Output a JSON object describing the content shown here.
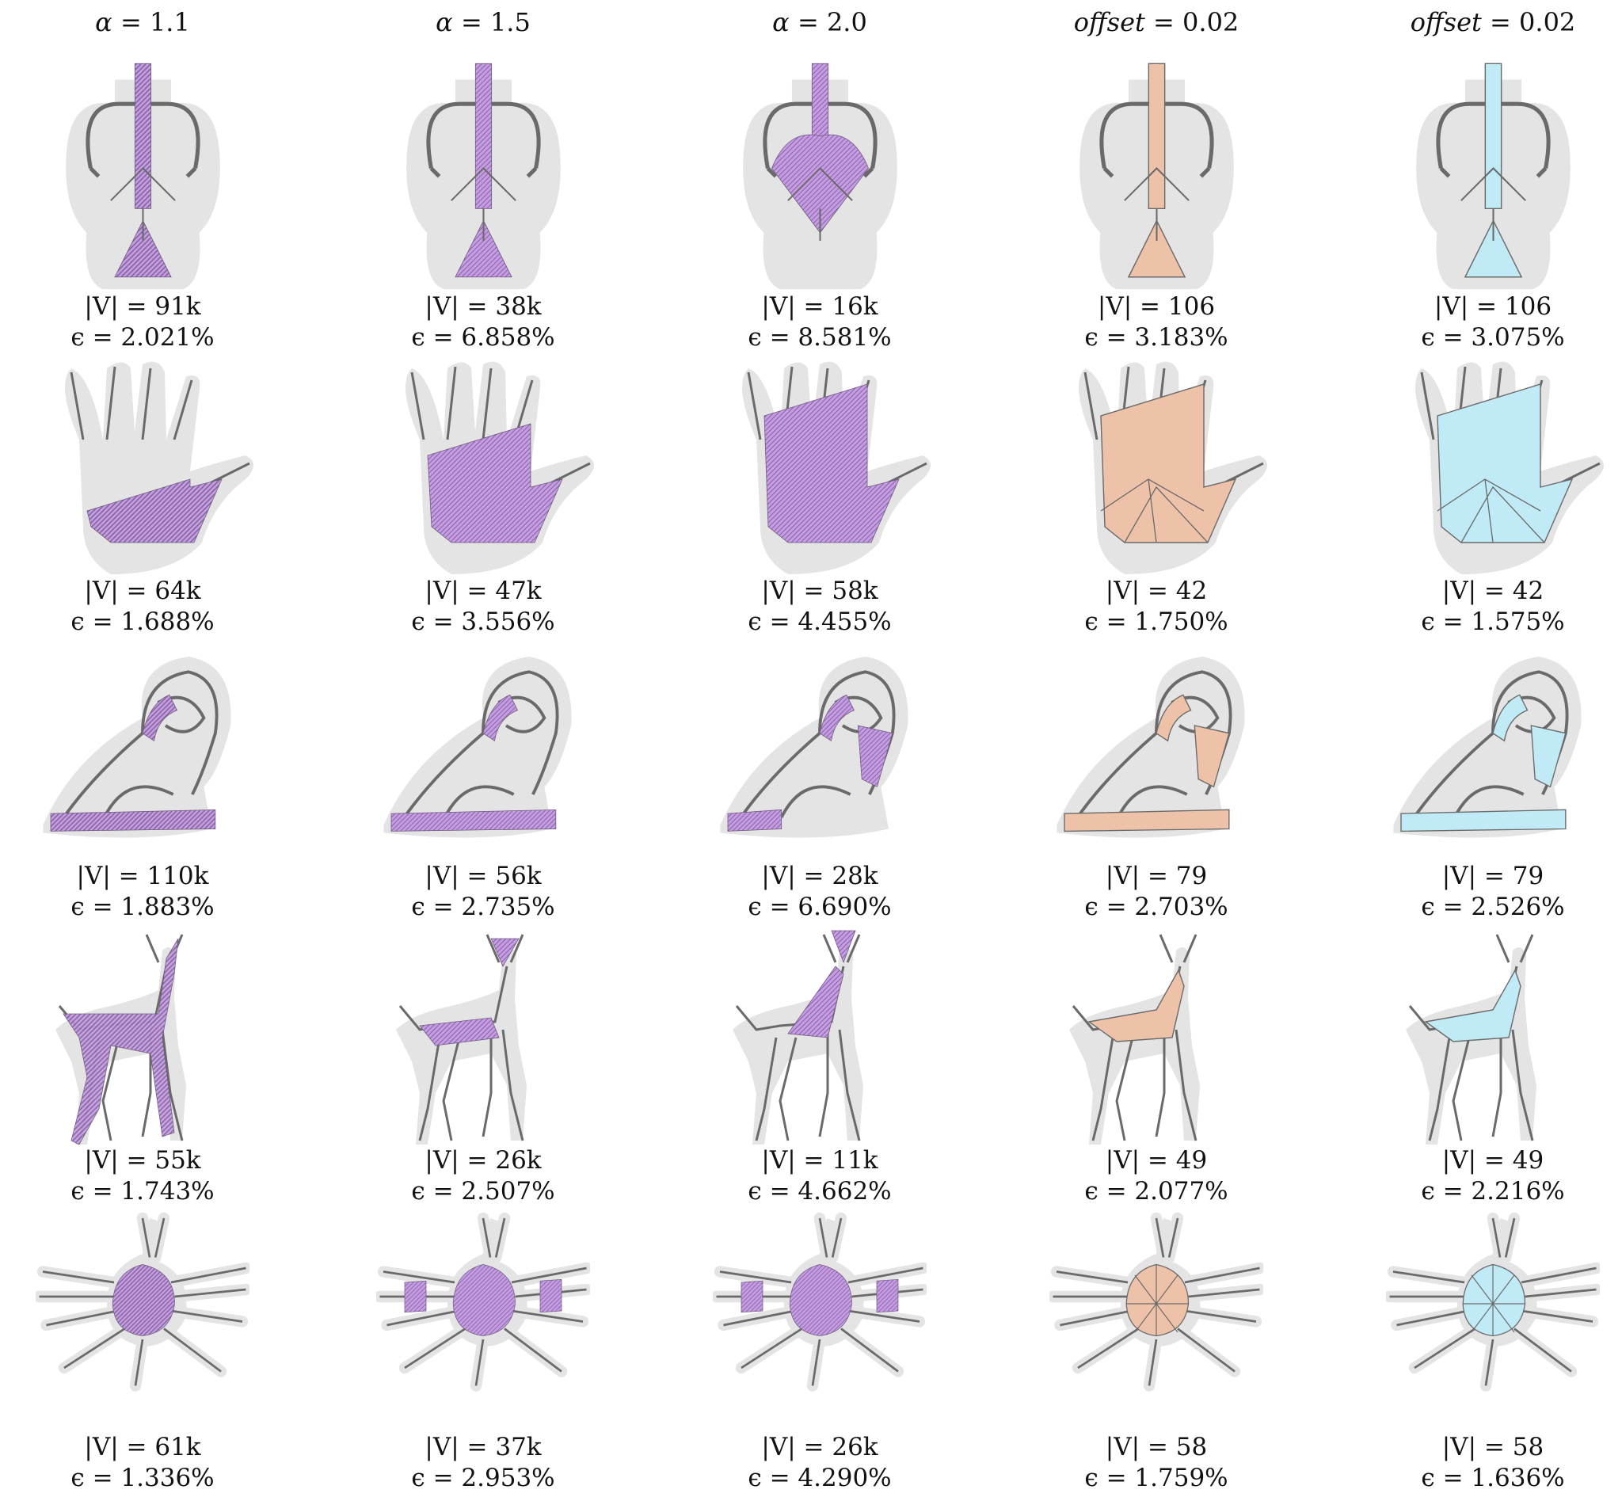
{
  "headers": [
    {
      "symbol": "α",
      "value": "= 1.1"
    },
    {
      "symbol": "offset",
      "value": "= 0.02"
    }
  ],
  "header_texts": [
    "α = 1.1",
    "α = 1.5",
    "α = 2.0",
    "offset = 0.02",
    "offset = 0.02"
  ],
  "colors": {
    "alpha_fill": "#c79be8",
    "alpha_dark": "#6f5a7e",
    "offset_fill_col4": "#eec2a8",
    "offset_fill_col5": "#bfeaf6",
    "silhouette": "#e4e4e4",
    "wire": "#6a6a6a"
  },
  "rows": [
    {
      "shape": "vase",
      "cells": [
        {
          "v": "|V| = 91k",
          "e": "ϵ = 2.021%"
        },
        {
          "v": "|V| = 38k",
          "e": "ϵ = 6.858%"
        },
        {
          "v": "|V| = 16k",
          "e": "ϵ = 8.581%"
        },
        {
          "v": "|V| = 106",
          "e": "ϵ = 3.183%"
        },
        {
          "v": "|V| = 106",
          "e": "ϵ = 3.075%"
        }
      ]
    },
    {
      "shape": "hand",
      "cells": [
        {
          "v": "|V| = 64k",
          "e": "ϵ = 1.688%"
        },
        {
          "v": "|V| = 47k",
          "e": "ϵ = 3.556%"
        },
        {
          "v": "|V| = 58k",
          "e": "ϵ = 4.455%"
        },
        {
          "v": "|V| = 42",
          "e": "ϵ = 1.750%"
        },
        {
          "v": "|V| = 42",
          "e": "ϵ = 1.575%"
        }
      ]
    },
    {
      "shape": "sculpture",
      "cells": [
        {
          "v": "|V| = 110k",
          "e": "ϵ = 1.883%"
        },
        {
          "v": "|V| = 56k",
          "e": "ϵ = 2.735%"
        },
        {
          "v": "|V| = 28k",
          "e": "ϵ = 6.690%"
        },
        {
          "v": "|V| = 79",
          "e": "ϵ = 2.703%"
        },
        {
          "v": "|V| = 79",
          "e": "ϵ = 2.526%"
        }
      ]
    },
    {
      "shape": "deer",
      "cells": [
        {
          "v": "|V| = 55k",
          "e": "ϵ = 1.743%"
        },
        {
          "v": "|V| = 26k",
          "e": "ϵ = 2.507%"
        },
        {
          "v": "|V| = 11k",
          "e": "ϵ = 4.662%"
        },
        {
          "v": "|V| = 49",
          "e": "ϵ = 2.077%"
        },
        {
          "v": "|V| = 49",
          "e": "ϵ = 2.216%"
        }
      ]
    },
    {
      "shape": "spider",
      "cells": [
        {
          "v": "|V| = 61k",
          "e": "ϵ = 1.336%"
        },
        {
          "v": "|V| = 37k",
          "e": "ϵ = 2.953%"
        },
        {
          "v": "|V| = 26k",
          "e": "ϵ = 4.290%"
        },
        {
          "v": "|V| = 58",
          "e": "ϵ = 1.759%"
        },
        {
          "v": "|V| = 58",
          "e": "ϵ = 1.636%"
        }
      ]
    }
  ]
}
